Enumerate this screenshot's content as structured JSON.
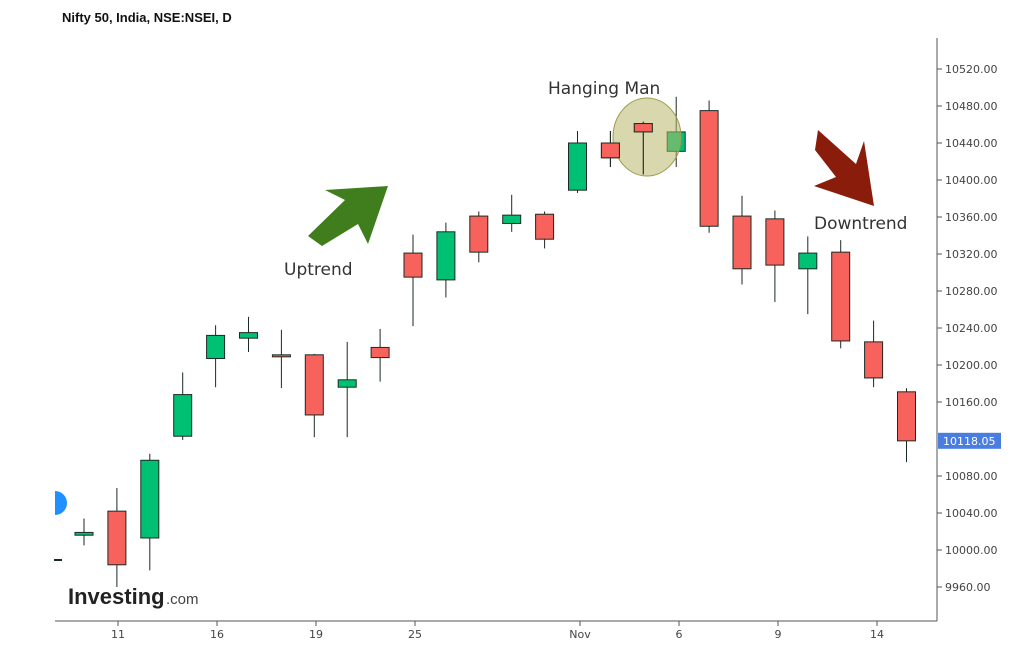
{
  "title": "Nifty 50, India, NSE:NSEI, D",
  "brand": {
    "name": "Investing",
    "suffix": ".com"
  },
  "colors": {
    "up": "#00c173",
    "down": "#f7635c",
    "arrow_up": "#3f7d1d",
    "arrow_down": "#8a1c0c",
    "highlight": "#b9b76a",
    "last_price_tag": "#4a7de0"
  },
  "chart_data": {
    "type": "candlestick",
    "y_axis": {
      "side": "right",
      "ticks": [
        "10520.00",
        "10480.00",
        "10440.00",
        "10400.00",
        "10360.00",
        "10320.00",
        "10280.00",
        "10240.00",
        "10200.00",
        "10160.00",
        "10080.00",
        "10040.00",
        "10000.00",
        "9960.00"
      ],
      "range": [
        9930,
        10545
      ]
    },
    "x_axis": {
      "ticks": [
        "11",
        "16",
        "19",
        "25",
        "Nov",
        "6",
        "9",
        "14"
      ]
    },
    "last_price": "10118.05",
    "candles": [
      {
        "open": 10016,
        "high": 10034,
        "low": 10005,
        "close": 10019
      },
      {
        "open": 10042,
        "high": 10067,
        "low": 9960,
        "close": 9984
      },
      {
        "open": 10013,
        "high": 10104,
        "low": 9978,
        "close": 10097
      },
      {
        "open": 10123,
        "high": 10192,
        "low": 10119,
        "close": 10168
      },
      {
        "open": 10207,
        "high": 10243,
        "low": 10176,
        "close": 10232
      },
      {
        "open": 10229,
        "high": 10252,
        "low": 10214,
        "close": 10235
      },
      {
        "open": 10211,
        "high": 10238,
        "low": 10175,
        "close": 10210
      },
      {
        "open": 10211,
        "high": 10212,
        "low": 10122,
        "close": 10146
      },
      {
        "open": 10176,
        "high": 10225,
        "low": 10122,
        "close": 10184
      },
      {
        "open": 10219,
        "high": 10239,
        "low": 10182,
        "close": 10208
      },
      {
        "open": 10321,
        "high": 10341,
        "low": 10242,
        "close": 10295
      },
      {
        "open": 10292,
        "high": 10354,
        "low": 10273,
        "close": 10344
      },
      {
        "open": 10361,
        "high": 10366,
        "low": 10311,
        "close": 10322
      },
      {
        "open": 10353,
        "high": 10384,
        "low": 10344,
        "close": 10362
      },
      {
        "open": 10363,
        "high": 10366,
        "low": 10326,
        "close": 10336
      },
      {
        "open": 10389,
        "high": 10453,
        "low": 10386,
        "close": 10440
      },
      {
        "open": 10440,
        "high": 10453,
        "low": 10414,
        "close": 10424
      },
      {
        "open": 10461,
        "high": 10463,
        "low": 10406,
        "close": 10452
      },
      {
        "open": 10431,
        "high": 10490,
        "low": 10414,
        "close": 10452
      },
      {
        "open": 10475,
        "high": 10486,
        "low": 10343,
        "close": 10350
      },
      {
        "open": 10361,
        "high": 10383,
        "low": 10287,
        "close": 10304
      },
      {
        "open": 10358,
        "high": 10367,
        "low": 10268,
        "close": 10308
      },
      {
        "open": 10304,
        "high": 10339,
        "low": 10255,
        "close": 10321
      },
      {
        "open": 10322,
        "high": 10335,
        "low": 10218,
        "close": 10226
      },
      {
        "open": 10225,
        "high": 10248,
        "low": 10176,
        "close": 10186
      },
      {
        "open": 10171,
        "high": 10175,
        "low": 10095,
        "close": 10118
      }
    ],
    "annotations": [
      {
        "text": "Uptrend"
      },
      {
        "text": "Hanging Man"
      },
      {
        "text": "Downtrend"
      }
    ],
    "grid": false
  }
}
